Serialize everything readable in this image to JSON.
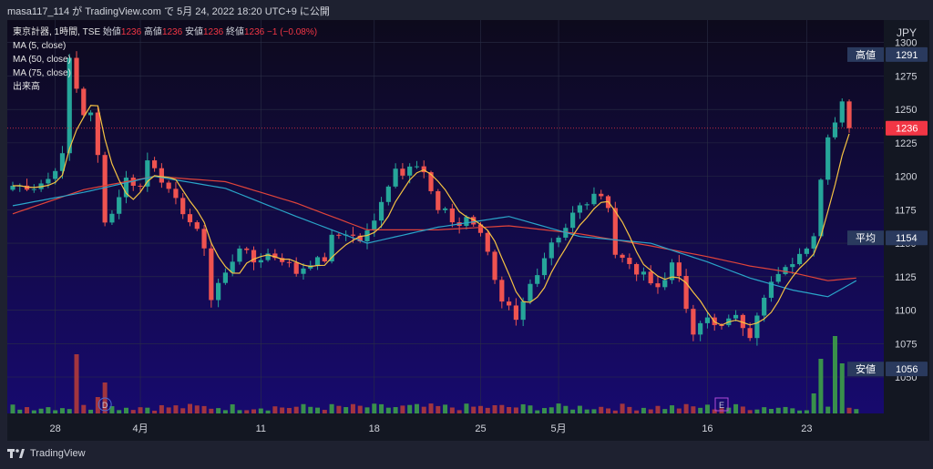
{
  "header": {
    "attribution": "masa117_114 が TradingView.com で 5月 24, 2022 18:20 UTC+9 に公開"
  },
  "footer": {
    "brand": "TradingView"
  },
  "legend": {
    "symbol": "東京計器, 1時間, TSE",
    "open_label": "始値",
    "open": "1236",
    "high_label": "高値",
    "high": "1236",
    "low_label": "安値",
    "low": "1236",
    "close_label": "終値",
    "close": "1236",
    "change": "−1 (−0.08%)",
    "indicators": [
      "MA (5, close)",
      "MA (50, close)",
      "MA (75, close)",
      "出来高"
    ]
  },
  "colors": {
    "up": "#26a69a",
    "down": "#ef5350",
    "ma5": "#f5c242",
    "ma50": "#2aa5c9",
    "ma75": "#e0443a",
    "vol_up": "#3d9e48",
    "vol_down": "#b13a3a",
    "badge": "#2a3a5e",
    "last_badge": "#f23645"
  },
  "chart_data": {
    "type": "candlestick",
    "currency": "JPY",
    "ylim": [
      1050,
      1310
    ],
    "y_ticks": [
      "1300",
      "1275",
      "1250",
      "1225",
      "1200",
      "1175",
      "1150",
      "1125",
      "1100",
      "1075",
      "1050"
    ],
    "x_ticks": [
      "28",
      "4月",
      "11",
      "18",
      "25",
      "5月",
      "16",
      "23"
    ],
    "bars": 120,
    "x_tick_bar_index": [
      6,
      18,
      35,
      51,
      66,
      77,
      98,
      112
    ],
    "price_anchors": [
      [
        0,
        1193
      ],
      [
        3,
        1192
      ],
      [
        5,
        1198
      ],
      [
        7,
        1215
      ],
      [
        8,
        1288
      ],
      [
        9,
        1266
      ],
      [
        10,
        1247
      ],
      [
        11,
        1246
      ],
      [
        12,
        1215
      ],
      [
        13,
        1168
      ],
      [
        14,
        1172
      ],
      [
        15,
        1186
      ],
      [
        16,
        1198
      ],
      [
        18,
        1192
      ],
      [
        19,
        1212
      ],
      [
        20,
        1208
      ],
      [
        22,
        1188
      ],
      [
        24,
        1174
      ],
      [
        26,
        1158
      ],
      [
        27,
        1148
      ],
      [
        28,
        1108
      ],
      [
        29,
        1120
      ],
      [
        30,
        1127
      ],
      [
        32,
        1148
      ],
      [
        34,
        1136
      ],
      [
        36,
        1142
      ],
      [
        38,
        1138
      ],
      [
        39,
        1134
      ],
      [
        40,
        1128
      ],
      [
        42,
        1136
      ],
      [
        44,
        1138
      ],
      [
        45,
        1154
      ],
      [
        47,
        1158
      ],
      [
        49,
        1152
      ],
      [
        50,
        1158
      ],
      [
        51,
        1166
      ],
      [
        52,
        1183
      ],
      [
        53,
        1194
      ],
      [
        54,
        1206
      ],
      [
        55,
        1203
      ],
      [
        56,
        1210
      ],
      [
        57,
        1208
      ],
      [
        58,
        1202
      ],
      [
        59,
        1188
      ],
      [
        60,
        1172
      ],
      [
        61,
        1177
      ],
      [
        62,
        1166
      ],
      [
        63,
        1163
      ],
      [
        64,
        1170
      ],
      [
        65,
        1162
      ],
      [
        66,
        1158
      ],
      [
        67,
        1144
      ],
      [
        68,
        1124
      ],
      [
        69,
        1108
      ],
      [
        70,
        1102
      ],
      [
        71,
        1095
      ],
      [
        72,
        1108
      ],
      [
        73,
        1118
      ],
      [
        74,
        1124
      ],
      [
        75,
        1136
      ],
      [
        76,
        1148
      ],
      [
        77,
        1152
      ],
      [
        78,
        1160
      ],
      [
        79,
        1172
      ],
      [
        80,
        1178
      ],
      [
        81,
        1182
      ],
      [
        82,
        1188
      ],
      [
        83,
        1186
      ],
      [
        84,
        1178
      ],
      [
        85,
        1142
      ],
      [
        86,
        1138
      ],
      [
        87,
        1133
      ],
      [
        88,
        1128
      ],
      [
        89,
        1126
      ],
      [
        90,
        1123
      ],
      [
        91,
        1118
      ],
      [
        92,
        1122
      ],
      [
        93,
        1136
      ],
      [
        94,
        1128
      ],
      [
        95,
        1098
      ],
      [
        96,
        1082
      ],
      [
        97,
        1088
      ],
      [
        98,
        1094
      ],
      [
        99,
        1089
      ],
      [
        100,
        1091
      ],
      [
        101,
        1092
      ],
      [
        102,
        1094
      ],
      [
        103,
        1088
      ],
      [
        104,
        1082
      ],
      [
        105,
        1098
      ],
      [
        106,
        1108
      ],
      [
        107,
        1120
      ],
      [
        108,
        1126
      ],
      [
        109,
        1130
      ],
      [
        110,
        1136
      ],
      [
        111,
        1140
      ],
      [
        112,
        1148
      ],
      [
        113,
        1158
      ],
      [
        114,
        1200
      ],
      [
        115,
        1232
      ],
      [
        116,
        1240
      ],
      [
        117,
        1254
      ],
      [
        118,
        1236
      ]
    ],
    "ma50_anchors": [
      [
        0,
        1178
      ],
      [
        10,
        1188
      ],
      [
        20,
        1200
      ],
      [
        30,
        1191
      ],
      [
        40,
        1170
      ],
      [
        50,
        1150
      ],
      [
        60,
        1162
      ],
      [
        70,
        1170
      ],
      [
        80,
        1155
      ],
      [
        90,
        1150
      ],
      [
        98,
        1136
      ],
      [
        104,
        1124
      ],
      [
        110,
        1115
      ],
      [
        115,
        1110
      ],
      [
        119,
        1122
      ]
    ],
    "ma75_anchors": [
      [
        0,
        1172
      ],
      [
        10,
        1190
      ],
      [
        20,
        1200
      ],
      [
        30,
        1196
      ],
      [
        40,
        1180
      ],
      [
        50,
        1160
      ],
      [
        60,
        1160
      ],
      [
        70,
        1163
      ],
      [
        80,
        1157
      ],
      [
        90,
        1148
      ],
      [
        98,
        1140
      ],
      [
        104,
        1133
      ],
      [
        110,
        1128
      ],
      [
        115,
        1122
      ],
      [
        119,
        1124
      ]
    ],
    "price_labels": [
      {
        "name": "高値",
        "value": "1291"
      },
      {
        "name": "",
        "value": "1236"
      },
      {
        "name": "平均",
        "value": "1154"
      },
      {
        "name": "安値",
        "value": "1056"
      }
    ],
    "current_price": 1236,
    "events": [
      {
        "bar": 13,
        "label": "D"
      },
      {
        "bar": 100,
        "label": "E"
      }
    ]
  }
}
